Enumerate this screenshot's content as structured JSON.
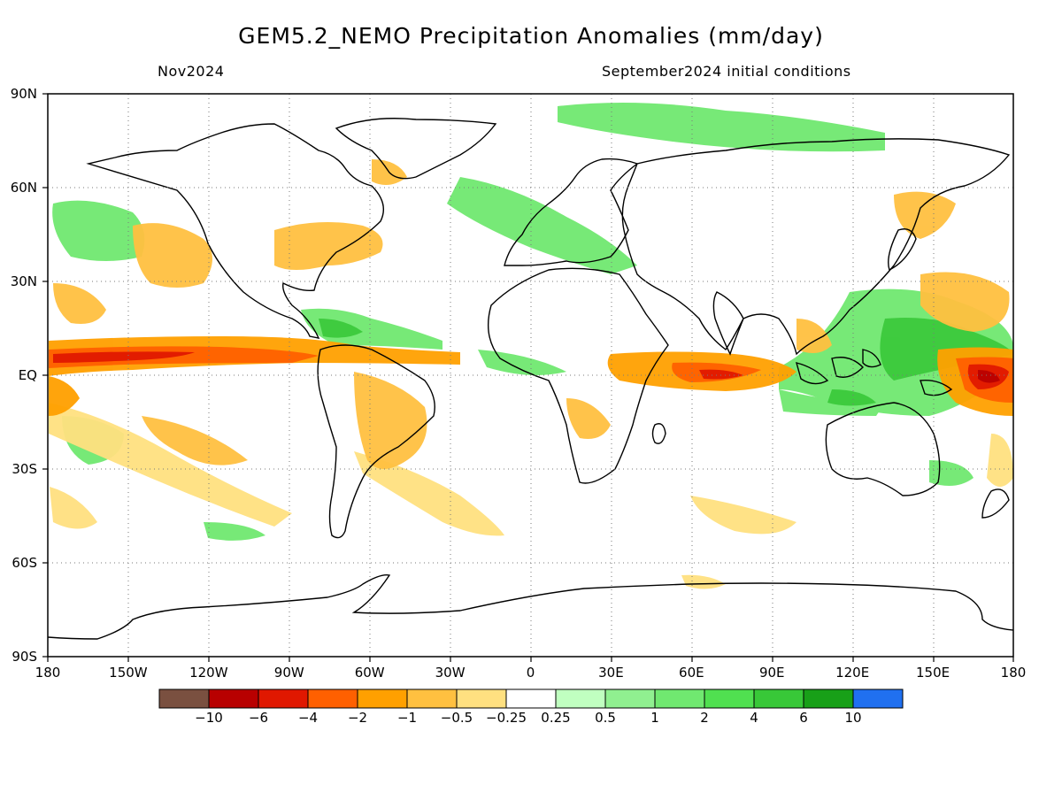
{
  "header": {
    "title": "GEM5.2_NEMO Precipitation Anomalies (mm/day)",
    "period": "Nov2024",
    "initial_conditions": "September2024 initial conditions"
  },
  "axes": {
    "lat_labels": [
      "90N",
      "60N",
      "30N",
      "EQ",
      "30S",
      "60S",
      "90S"
    ],
    "lon_labels": [
      "180",
      "150W",
      "120W",
      "90W",
      "60W",
      "30W",
      "0",
      "30E",
      "60E",
      "90E",
      "120E",
      "150E",
      "180"
    ]
  },
  "colorbar": {
    "colors": [
      "#7a5040",
      "#b80000",
      "#e01800",
      "#ff6000",
      "#ffa000",
      "#ffc040",
      "#ffe080",
      "#ffffff",
      "#c0ffc0",
      "#90f090",
      "#70e870",
      "#50e050",
      "#38c838",
      "#18a018",
      "#2070f0"
    ],
    "labels": [
      "−10",
      "−6",
      "−4",
      "−2",
      "−1",
      "−0.5",
      "−0.25",
      "0.25",
      "0.5",
      "1",
      "2",
      "4",
      "6",
      "10"
    ]
  },
  "anomaly_regions": [
    {
      "region": "Equatorial central/east Pacific",
      "category": "-2"
    },
    {
      "region": "Western equatorial Pacific",
      "category": "-4"
    },
    {
      "region": "Central equatorial Indian Ocean",
      "category": "-4"
    },
    {
      "region": "Maritime Continent / Philippine Sea",
      "category": "2"
    },
    {
      "region": "Caribbean Sea",
      "category": "1"
    },
    {
      "region": "North Atlantic / Europe",
      "category": "1"
    },
    {
      "region": "Arctic Ocean",
      "category": "0.5"
    },
    {
      "region": "Eastern United States",
      "category": "-1"
    },
    {
      "region": "Brazil",
      "category": "-1"
    },
    {
      "region": "South Pacific Convergence Zone",
      "category": "-1"
    },
    {
      "region": "Japan / Kuroshio",
      "category": "-1"
    },
    {
      "region": "Southern Africa",
      "category": "-0.5"
    }
  ]
}
